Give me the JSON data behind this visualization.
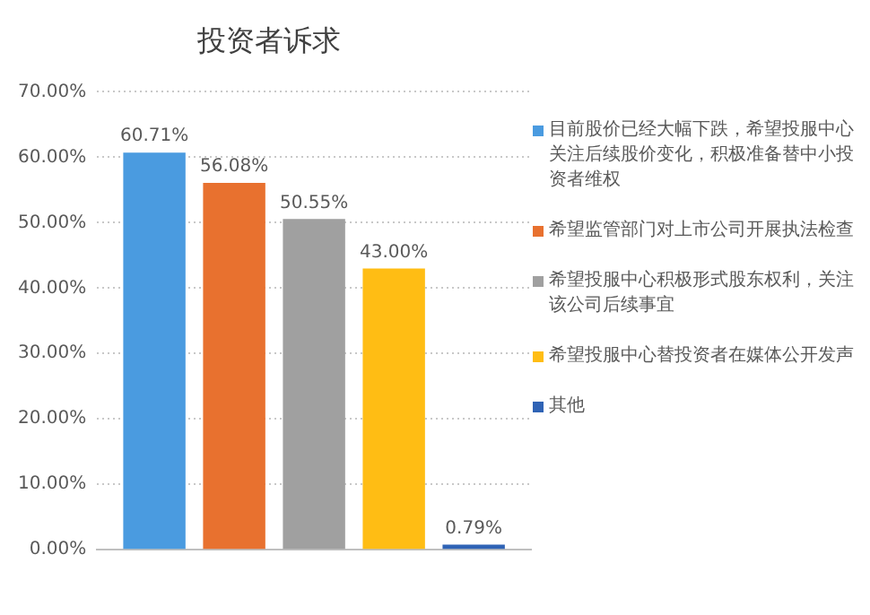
{
  "chart_data": {
    "type": "bar",
    "title": "投资者诉求",
    "categories": [
      null
    ],
    "series": [
      {
        "name": "目前股价已经大幅下跌，希望投服中心关注后续股价变化，积极准备替中小投资者维权",
        "color": "#4a9be0",
        "values": [
          60.71
        ],
        "value_labels": [
          "60.71%"
        ]
      },
      {
        "name": "希望监管部门对上市公司开展执法检查",
        "color": "#e8712f",
        "values": [
          56.08
        ],
        "value_labels": [
          "56.08%"
        ]
      },
      {
        "name": "希望投服中心积极形式股东权利，关注该公司后续事宜",
        "color": "#a0a0a0",
        "values": [
          50.55
        ],
        "value_labels": [
          "50.55%"
        ]
      },
      {
        "name": "希望投服中心替投资者在媒体公开发声",
        "color": "#ffbd14",
        "values": [
          43.0
        ],
        "value_labels": [
          "43.00%"
        ]
      },
      {
        "name": "其他",
        "color": "#2f63b5",
        "values": [
          0.79
        ],
        "value_labels": [
          "0.79%"
        ]
      }
    ],
    "ylim": [
      0,
      70
    ],
    "yticks": [
      {
        "value": 0,
        "label": "0.00%"
      },
      {
        "value": 10,
        "label": "10.00%"
      },
      {
        "value": 20,
        "label": "20.00%"
      },
      {
        "value": 30,
        "label": "30.00%"
      },
      {
        "value": 40,
        "label": "40.00%"
      },
      {
        "value": 50,
        "label": "50.00%"
      },
      {
        "value": 60,
        "label": "60.00%"
      },
      {
        "value": 70,
        "label": "70.00%"
      }
    ],
    "grid": "y",
    "legend": "right"
  }
}
